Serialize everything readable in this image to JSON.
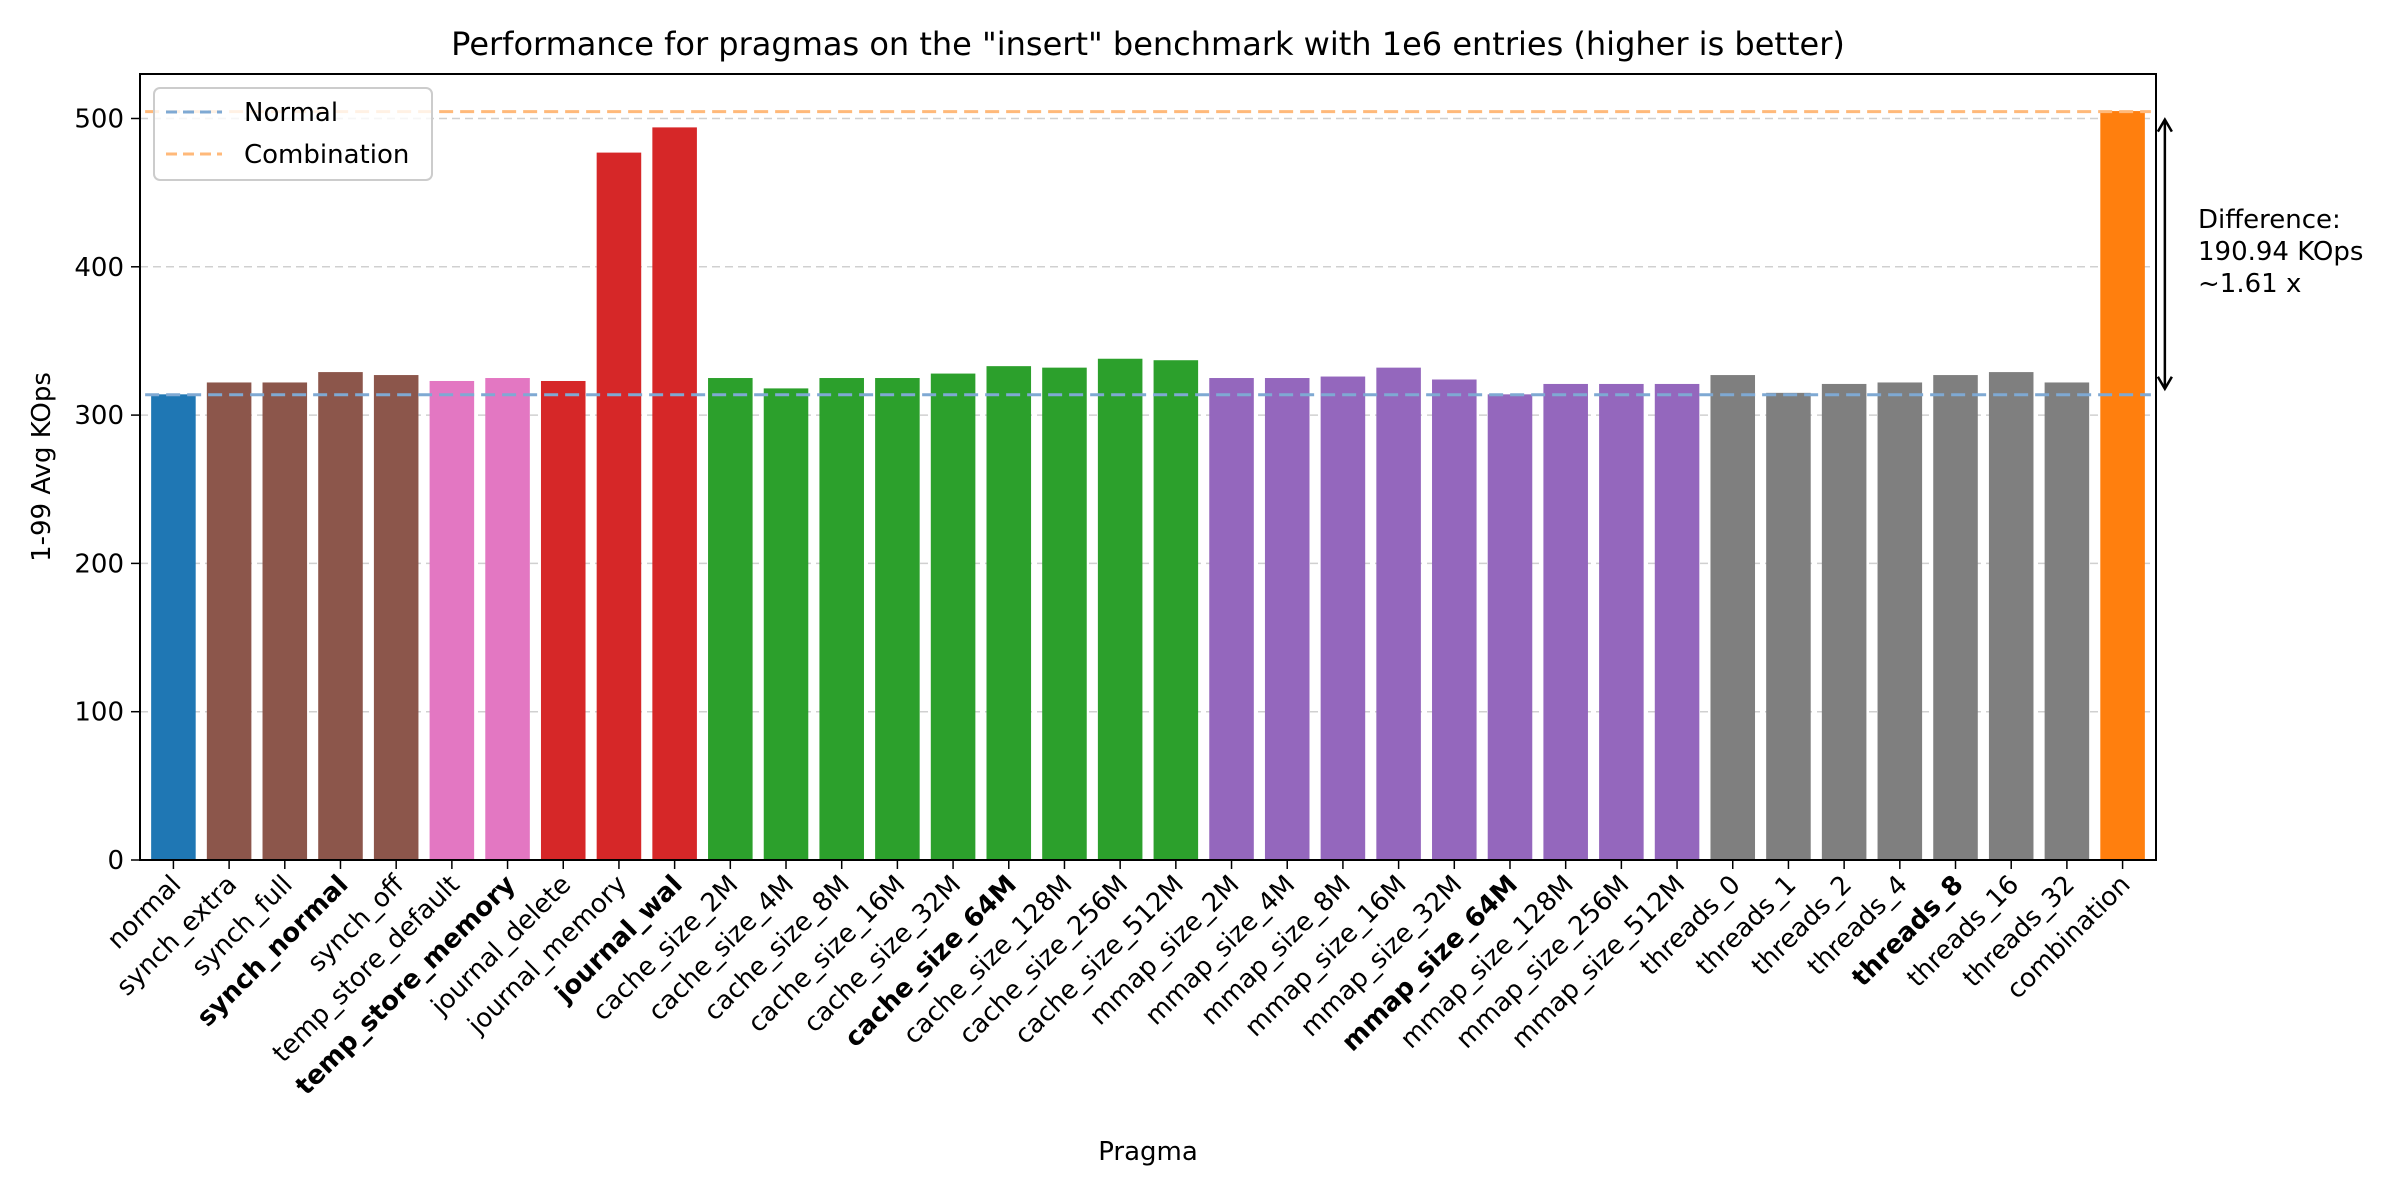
{
  "chart_data": {
    "type": "bar",
    "title": "Performance for pragmas on the \"insert\" benchmark with 1e6 entries (higher is better)",
    "xlabel": "Pragma",
    "ylabel": "1-99 Avg KOps",
    "ylim": [
      0,
      530
    ],
    "yticks": [
      0,
      100,
      200,
      300,
      400,
      500
    ],
    "grid": "horizontal dashed",
    "legend_placement": "top-left",
    "categories": [
      "normal",
      "synch_extra",
      "synch_full",
      "synch_normal",
      "synch_off",
      "temp_store_default",
      "temp_store_memory",
      "journal_delete",
      "journal_memory",
      "journal_wal",
      "cache_size_2M",
      "cache_size_4M",
      "cache_size_8M",
      "cache_size_16M",
      "cache_size_32M",
      "cache_size_64M",
      "cache_size_128M",
      "cache_size_256M",
      "cache_size_512M",
      "mmap_size_2M",
      "mmap_size_4M",
      "mmap_size_8M",
      "mmap_size_16M",
      "mmap_size_32M",
      "mmap_size_64M",
      "mmap_size_128M",
      "mmap_size_256M",
      "mmap_size_512M",
      "threads_0",
      "threads_1",
      "threads_2",
      "threads_4",
      "threads_8",
      "threads_16",
      "threads_32",
      "combination"
    ],
    "values": [
      314,
      322,
      322,
      329,
      327,
      323,
      325,
      323,
      477,
      494,
      325,
      318,
      325,
      325,
      328,
      333,
      332,
      338,
      337,
      325,
      325,
      326,
      332,
      324,
      314,
      321,
      321,
      321,
      327,
      315,
      321,
      322,
      327,
      329,
      322,
      505
    ],
    "bold_categories": [
      "synch_normal",
      "temp_store_memory",
      "journal_wal",
      "cache_size_64M",
      "mmap_size_64M",
      "threads_8"
    ],
    "bar_groups": [
      {
        "from": 0,
        "to": 0,
        "color": "#1f77b4"
      },
      {
        "from": 1,
        "to": 4,
        "color": "#8c564b"
      },
      {
        "from": 5,
        "to": 6,
        "color": "#e377c2"
      },
      {
        "from": 7,
        "to": 9,
        "color": "#d62728"
      },
      {
        "from": 10,
        "to": 18,
        "color": "#2ca02c"
      },
      {
        "from": 19,
        "to": 27,
        "color": "#9467bd"
      },
      {
        "from": 28,
        "to": 34,
        "color": "#7f7f7f"
      },
      {
        "from": 35,
        "to": 35,
        "color": "#ff7f0e"
      }
    ],
    "reference_lines": [
      {
        "name": "Normal",
        "value": 313.7,
        "color": "#7fa9d3",
        "style": "dashed"
      },
      {
        "name": "Combination",
        "value": 504.64,
        "color": "#ffb97a",
        "style": "dashed"
      }
    ],
    "annotation": {
      "lines": [
        "Difference:",
        "190.94 KOps",
        "~1.61 x"
      ]
    }
  }
}
